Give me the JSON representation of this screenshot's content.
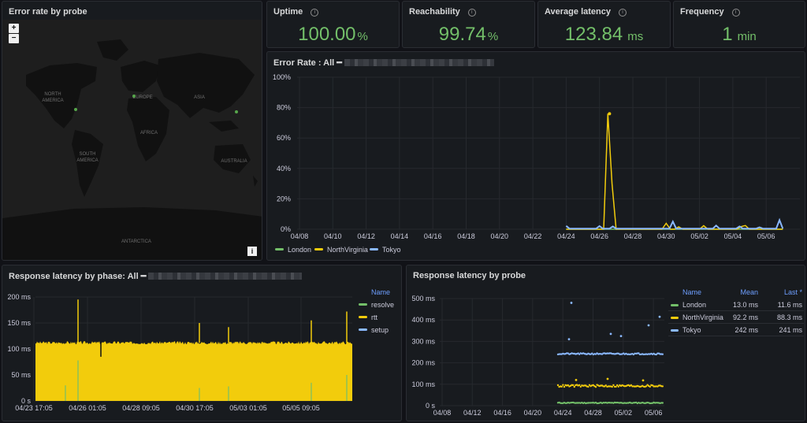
{
  "colors": {
    "green": "#73bf69",
    "yellow": "#f2cc0c",
    "blue": "#8ab8ff",
    "link": "#6e9fff"
  },
  "map": {
    "title": "Error rate by probe",
    "zoom_in": "+",
    "zoom_out": "−",
    "attribution": "i",
    "labels": {
      "north_america": "NORTH\nAMERICA",
      "europe": "EUROPE",
      "asia": "ASIA",
      "africa": "AFRICA",
      "south_america": "SOUTH\nAMERICA",
      "australia": "AUSTRALIA",
      "antarctica": "ANTARCTICA"
    }
  },
  "stats": [
    {
      "title": "Uptime",
      "value": "100.00",
      "unit": "%"
    },
    {
      "title": "Reachability",
      "value": "99.74",
      "unit": "%"
    },
    {
      "title": "Average latency",
      "value": "123.84",
      "unit": "ms"
    },
    {
      "title": "Frequency",
      "value": "1",
      "unit": "min"
    }
  ],
  "info_glyph": "i",
  "error_rate": {
    "title": "Error Rate : All ━",
    "legend": [
      "London",
      "NorthVirginia",
      "Tokyo"
    ]
  },
  "phase": {
    "title": "Response latency by phase: All ━",
    "legend_header": "Name",
    "legend": [
      "resolve",
      "rtt",
      "setup"
    ]
  },
  "probe_latency": {
    "title": "Response latency by probe",
    "table_headers": [
      "Name",
      "Mean",
      "Last *"
    ],
    "rows": [
      {
        "name": "London",
        "mean": "13.0 ms",
        "last": "11.6 ms"
      },
      {
        "name": "NorthVirginia",
        "mean": "92.2 ms",
        "last": "88.3 ms"
      },
      {
        "name": "Tokyo",
        "mean": "242 ms",
        "last": "241 ms"
      }
    ]
  },
  "chart_data": [
    {
      "type": "line",
      "title": "Error Rate : All ━",
      "x": [
        "04/08",
        "04/10",
        "04/12",
        "04/14",
        "04/16",
        "04/18",
        "04/20",
        "04/22",
        "04/24",
        "04/26",
        "04/28",
        "04/30",
        "05/02",
        "05/04",
        "05/06"
      ],
      "y_ticks": [
        "0%",
        "20%",
        "40%",
        "60%",
        "80%",
        "100%"
      ],
      "ylim": [
        0,
        100
      ],
      "series": [
        {
          "name": "London",
          "color": "#73bf69",
          "points": [
            [
              "04/24",
              0
            ],
            [
              "05/07",
              0
            ]
          ]
        },
        {
          "name": "NorthVirginia",
          "color": "#f2cc0c",
          "points": [
            [
              "04/24",
              0
            ],
            [
              "04/26",
              1
            ],
            [
              "04/26.6",
              76
            ],
            [
              "04/26.8",
              0
            ],
            [
              "04/29.6",
              2
            ],
            [
              "05/05",
              1.5
            ],
            [
              "05/07",
              0
            ]
          ]
        },
        {
          "name": "Tokyo",
          "color": "#8ab8ff",
          "points": [
            [
              "04/24",
              2
            ],
            [
              "04/27.2",
              3
            ],
            [
              "05/06.7",
              4
            ],
            [
              "05/07",
              1
            ]
          ]
        }
      ]
    },
    {
      "type": "bar",
      "title": "Response latency by phase: All ━",
      "x": [
        "04/23 17:05",
        "04/26 01:05",
        "04/28 09:05",
        "04/30 17:05",
        "05/03 01:05",
        "05/05 09:05"
      ],
      "y_ticks": [
        "0 s",
        "50 ms",
        "100 ms",
        "150 ms",
        "200 ms"
      ],
      "ylim": [
        0,
        200
      ],
      "series": [
        {
          "name": "resolve",
          "color": "#73bf69",
          "values": [
            0,
            30,
            78,
            0,
            0,
            25
          ]
        },
        {
          "name": "rtt",
          "color": "#f2cc0c",
          "values": [
            112,
            195,
            112,
            150,
            112,
            170
          ]
        },
        {
          "name": "setup",
          "color": "#8ab8ff",
          "values": [
            0,
            0,
            0,
            0,
            0,
            0
          ]
        }
      ]
    },
    {
      "type": "scatter",
      "title": "Response latency by probe",
      "x": [
        "04/08",
        "04/12",
        "04/16",
        "04/20",
        "04/24",
        "04/28",
        "05/02",
        "05/06"
      ],
      "y_ticks": [
        "0 s",
        "100 ms",
        "200 ms",
        "300 ms",
        "400 ms",
        "500 ms"
      ],
      "ylim": [
        0,
        500
      ],
      "series": [
        {
          "name": "London",
          "color": "#73bf69",
          "mean": 13.0,
          "last": 11.6
        },
        {
          "name": "NorthVirginia",
          "color": "#f2cc0c",
          "mean": 92.2,
          "last": 88.3
        },
        {
          "name": "Tokyo",
          "color": "#8ab8ff",
          "mean": 242,
          "last": 241
        }
      ]
    }
  ]
}
